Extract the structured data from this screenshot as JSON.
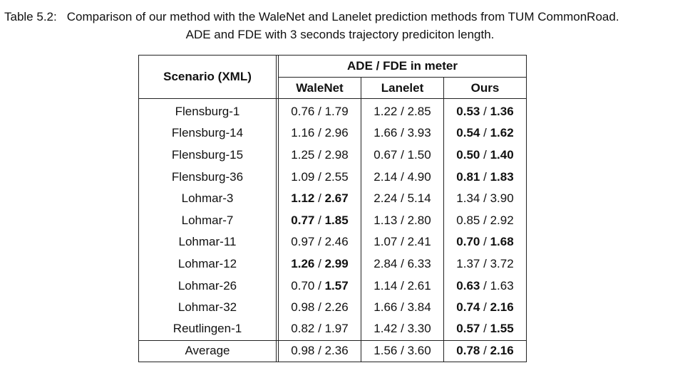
{
  "caption": {
    "label": "Table 5.2:",
    "line1": "Comparison of our method with the WaleNet and Lanelet prediction methods from TUM CommonRoad.",
    "line2": "ADE and FDE with 3 seconds trajectory prediciton length."
  },
  "table": {
    "header": {
      "scenario": "Scenario (XML)",
      "group": "ADE / FDE in meter",
      "columns": [
        "WaleNet",
        "Lanelet",
        "Ours"
      ]
    },
    "separator": "/",
    "rows": [
      {
        "scenario": "Flensburg-1",
        "cells": [
          [
            "0.76",
            "1.79"
          ],
          [
            "1.22",
            "2.85"
          ],
          [
            "0.53",
            "1.36"
          ]
        ]
      },
      {
        "scenario": "Flensburg-14",
        "cells": [
          [
            "1.16",
            "2.96"
          ],
          [
            "1.66",
            "3.93"
          ],
          [
            "0.54",
            "1.62"
          ]
        ]
      },
      {
        "scenario": "Flensburg-15",
        "cells": [
          [
            "1.25",
            "2.98"
          ],
          [
            "0.67",
            "1.50"
          ],
          [
            "0.50",
            "1.40"
          ]
        ]
      },
      {
        "scenario": "Flensburg-36",
        "cells": [
          [
            "1.09",
            "2.55"
          ],
          [
            "2.14",
            "4.90"
          ],
          [
            "0.81",
            "1.83"
          ]
        ]
      },
      {
        "scenario": "Lohmar-3",
        "cells": [
          [
            "1.12",
            "2.67"
          ],
          [
            "2.24",
            "5.14"
          ],
          [
            "1.34",
            "3.90"
          ]
        ]
      },
      {
        "scenario": "Lohmar-7",
        "cells": [
          [
            "0.77",
            "1.85"
          ],
          [
            "1.13",
            "2.80"
          ],
          [
            "0.85",
            "2.92"
          ]
        ]
      },
      {
        "scenario": "Lohmar-11",
        "cells": [
          [
            "0.97",
            "2.46"
          ],
          [
            "1.07",
            "2.41"
          ],
          [
            "0.70",
            "1.68"
          ]
        ]
      },
      {
        "scenario": "Lohmar-12",
        "cells": [
          [
            "1.26",
            "2.99"
          ],
          [
            "2.84",
            "6.33"
          ],
          [
            "1.37",
            "3.72"
          ]
        ]
      },
      {
        "scenario": "Lohmar-26",
        "cells": [
          [
            "0.70",
            "1.57"
          ],
          [
            "1.14",
            "2.61"
          ],
          [
            "0.63",
            "1.63"
          ]
        ]
      },
      {
        "scenario": "Lohmar-32",
        "cells": [
          [
            "0.98",
            "2.26"
          ],
          [
            "1.66",
            "3.84"
          ],
          [
            "0.74",
            "2.16"
          ]
        ]
      },
      {
        "scenario": "Reutlingen-1",
        "cells": [
          [
            "0.82",
            "1.97"
          ],
          [
            "1.42",
            "3.30"
          ],
          [
            "0.57",
            "1.55"
          ]
        ]
      }
    ],
    "average": {
      "scenario": "Average",
      "cells": [
        [
          "0.98",
          "2.36"
        ],
        [
          "1.56",
          "3.60"
        ],
        [
          "0.78",
          "2.16"
        ]
      ]
    },
    "bold": {
      "Flensburg-1": [
        [
          false,
          false
        ],
        [
          false,
          false
        ],
        [
          true,
          true
        ]
      ],
      "Flensburg-14": [
        [
          false,
          false
        ],
        [
          false,
          false
        ],
        [
          true,
          true
        ]
      ],
      "Flensburg-15": [
        [
          false,
          false
        ],
        [
          false,
          false
        ],
        [
          true,
          true
        ]
      ],
      "Flensburg-36": [
        [
          false,
          false
        ],
        [
          false,
          false
        ],
        [
          true,
          true
        ]
      ],
      "Lohmar-3": [
        [
          true,
          true
        ],
        [
          false,
          false
        ],
        [
          false,
          false
        ]
      ],
      "Lohmar-7": [
        [
          true,
          true
        ],
        [
          false,
          false
        ],
        [
          false,
          false
        ]
      ],
      "Lohmar-11": [
        [
          false,
          false
        ],
        [
          false,
          false
        ],
        [
          true,
          true
        ]
      ],
      "Lohmar-12": [
        [
          true,
          true
        ],
        [
          false,
          false
        ],
        [
          false,
          false
        ]
      ],
      "Lohmar-26": [
        [
          false,
          true
        ],
        [
          false,
          false
        ],
        [
          true,
          false
        ]
      ],
      "Lohmar-32": [
        [
          false,
          false
        ],
        [
          false,
          false
        ],
        [
          true,
          true
        ]
      ],
      "Reutlingen-1": [
        [
          false,
          false
        ],
        [
          false,
          false
        ],
        [
          true,
          true
        ]
      ],
      "Average": [
        [
          false,
          false
        ],
        [
          false,
          false
        ],
        [
          true,
          true
        ]
      ]
    }
  }
}
